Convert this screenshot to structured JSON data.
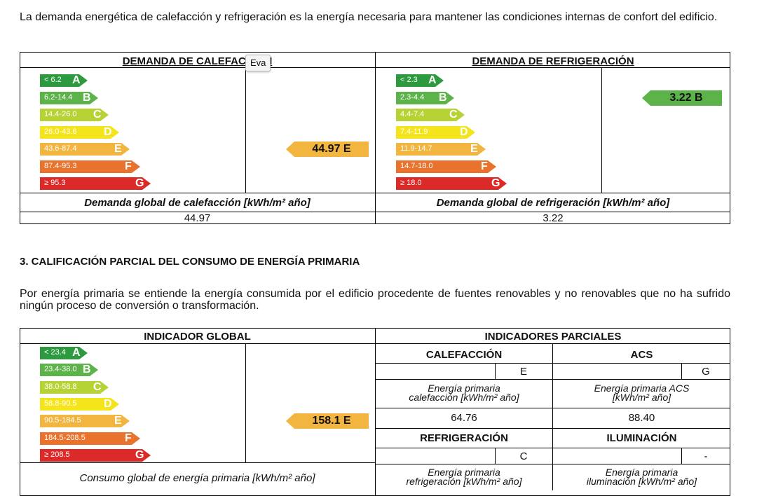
{
  "intro1": "La demanda energética de calefacción y refrigeración es la energía necesaria para mantener las condiciones internas de confort del edificio.",
  "tooltip": "Eva",
  "heating": {
    "header": "DEMANDA DE CALEFACCIÓN",
    "scale": [
      {
        "range": "< 6.2",
        "letter": "A",
        "color": "#2e9a3f"
      },
      {
        "range": "6.2-14.4",
        "letter": "B",
        "color": "#5cb34a"
      },
      {
        "range": "14.4-26.0",
        "letter": "C",
        "color": "#b6d336"
      },
      {
        "range": "26.0-43.6",
        "letter": "D",
        "color": "#f4e41c"
      },
      {
        "range": "43.6-87.4",
        "letter": "E",
        "color": "#f2b53f"
      },
      {
        "range": "87.4-95.3",
        "letter": "F",
        "color": "#e9722c"
      },
      {
        "range": "≥ 95.3",
        "letter": "G",
        "color": "#dc2a28"
      }
    ],
    "indicator": "44.97 E",
    "indicator_color": "#f2b53f",
    "global_label": "Demanda global de calefacción [kWh/m² año]",
    "global_value": "44.97"
  },
  "cooling": {
    "header": "DEMANDA DE REFRIGERACIÓN",
    "scale": [
      {
        "range": "< 2.3",
        "letter": "A",
        "color": "#2e9a3f"
      },
      {
        "range": "2.3-4.4",
        "letter": "B",
        "color": "#5cb34a"
      },
      {
        "range": "4.4-7.4",
        "letter": "C",
        "color": "#b6d336"
      },
      {
        "range": "7.4-11.9",
        "letter": "D",
        "color": "#f4e41c"
      },
      {
        "range": "11.9-14.7",
        "letter": "E",
        "color": "#f2b53f"
      },
      {
        "range": "14.7-18.0",
        "letter": "F",
        "color": "#e9722c"
      },
      {
        "range": "≥ 18.0",
        "letter": "G",
        "color": "#dc2a28"
      }
    ],
    "indicator": "3.22 B",
    "indicator_color": "#5cb34a",
    "global_label": "Demanda global de refrigeración [kWh/m² año]",
    "global_value": "3.22"
  },
  "section_title": "3. CALIFICACIÓN PARCIAL DEL CONSUMO DE ENERGÍA PRIMARIA",
  "intro2": "Por energía primaria se entiende la energía consumida por el edificio procedente de fuentes renovables y no renovables que no ha sufrido ningún proceso de conversión o transformación.",
  "global": {
    "header": "INDICADOR GLOBAL",
    "scale": [
      {
        "range": "< 23.4",
        "letter": "A",
        "color": "#2e9a3f"
      },
      {
        "range": "23.4-38.0",
        "letter": "B",
        "color": "#5cb34a"
      },
      {
        "range": "38.0-58.8",
        "letter": "C",
        "color": "#b6d336"
      },
      {
        "range": "58.8-90.5",
        "letter": "D",
        "color": "#f4e41c"
      },
      {
        "range": "90.5-184.5",
        "letter": "E",
        "color": "#f2b53f"
      },
      {
        "range": "184.5-208.5",
        "letter": "F",
        "color": "#e9722c"
      },
      {
        "range": "≥ 208.5",
        "letter": "G",
        "color": "#dc2a28"
      }
    ],
    "indicator": "158.1 E",
    "indicator_color": "#f2b53f",
    "global_label": "Consumo global de energía primaria [kWh/m² año]"
  },
  "partial": {
    "header": "INDICADORES PARCIALES",
    "calefaccion": {
      "title": "CALEFACCIÓN",
      "letter": "E",
      "label1": "Energía primaria",
      "label2": "calefacción [kWh/m² año]",
      "value": "64.76"
    },
    "acs": {
      "title": "ACS",
      "letter": "G",
      "label1": "Energía primaria ACS",
      "label2": "[kWh/m² año]",
      "value": "88.40"
    },
    "refrigeracion": {
      "title": "REFRIGERACIÓN",
      "letter": "C",
      "label1": "Energía primaria",
      "label2": "refrigeración [kWh/m² año]"
    },
    "iluminacion": {
      "title": "ILUMINACIÓN",
      "letter": "-",
      "label1": "Energía primaria",
      "label2": "iluminación [kWh/m² año]"
    }
  }
}
